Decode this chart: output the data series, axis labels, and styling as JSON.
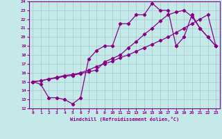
{
  "xlabel": "Windchill (Refroidissement éolien,°C)",
  "xlim": [
    -0.5,
    23.5
  ],
  "ylim": [
    12,
    24
  ],
  "xticks": [
    0,
    1,
    2,
    3,
    4,
    5,
    6,
    7,
    8,
    9,
    10,
    11,
    12,
    13,
    14,
    15,
    16,
    17,
    18,
    19,
    20,
    21,
    22,
    23
  ],
  "yticks": [
    12,
    13,
    14,
    15,
    16,
    17,
    18,
    19,
    20,
    21,
    22,
    23,
    24
  ],
  "bg_color": "#c5e8e8",
  "line_color": "#880088",
  "grid_color": "#a8d0d0",
  "line1_x": [
    0,
    1,
    2,
    3,
    4,
    5,
    6,
    7,
    8,
    9,
    10,
    11,
    12,
    13,
    14,
    15,
    16,
    17,
    18,
    19,
    20,
    21,
    22,
    23
  ],
  "line1_y": [
    15,
    14.7,
    13.2,
    13.2,
    13.0,
    12.5,
    13.2,
    17.5,
    18.5,
    19.0,
    19.0,
    21.5,
    21.5,
    22.5,
    22.5,
    23.8,
    23.0,
    23.0,
    19.0,
    20.0,
    22.5,
    21.0,
    20.0,
    19.0
  ],
  "line2_x": [
    0,
    1,
    2,
    3,
    4,
    5,
    6,
    7,
    8,
    9,
    10,
    11,
    12,
    13,
    14,
    15,
    16,
    17,
    18,
    19,
    20,
    21,
    22,
    23
  ],
  "line2_y": [
    15,
    15.1,
    15.3,
    15.5,
    15.7,
    15.8,
    16.0,
    16.3,
    16.7,
    17.0,
    17.3,
    17.7,
    18.0,
    18.4,
    18.8,
    19.2,
    19.6,
    20.0,
    20.5,
    21.0,
    21.5,
    22.0,
    22.5,
    19.0
  ],
  "line3_x": [
    0,
    1,
    2,
    3,
    4,
    5,
    6,
    7,
    8,
    9,
    10,
    11,
    12,
    13,
    14,
    15,
    16,
    17,
    18,
    19,
    20,
    21,
    22,
    23
  ],
  "line3_y": [
    15,
    15.1,
    15.3,
    15.4,
    15.6,
    15.7,
    15.9,
    16.1,
    16.3,
    17.2,
    17.6,
    18.0,
    18.8,
    19.5,
    20.3,
    21.0,
    21.8,
    22.5,
    22.8,
    23.0,
    22.3,
    21.0,
    20.0,
    19.0
  ]
}
